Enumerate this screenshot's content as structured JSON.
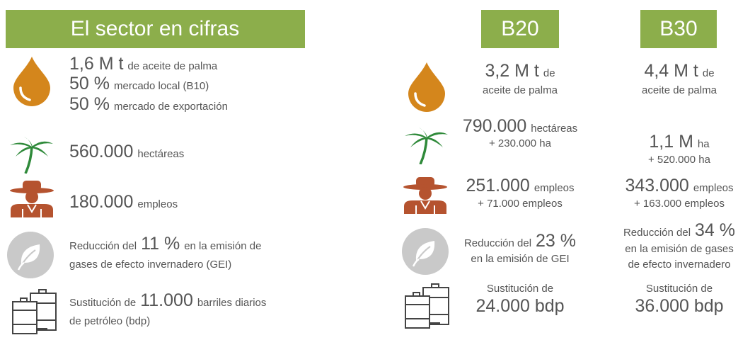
{
  "header": {
    "title": "El sector en cifras"
  },
  "current": {
    "rows": [
      [
        [
          {
            "big": "1,6 M t"
          },
          {
            "small": "de aceite de palma"
          }
        ],
        [
          {
            "big": "50 %"
          },
          {
            "small": "mercado local (B10)"
          }
        ],
        [
          {
            "big": "50 %"
          },
          {
            "small": "mercado de exportación"
          }
        ]
      ],
      [
        [
          {
            "big": "560.000"
          },
          {
            "small": "hectáreas"
          }
        ]
      ],
      [
        [
          {
            "big": "180.000"
          },
          {
            "small": "empleos"
          }
        ]
      ],
      [
        [
          {
            "small": "Reducción del"
          },
          {
            "big": "11 %"
          },
          {
            "small": "en la emisión de"
          }
        ],
        [
          {
            "small": "gases de efecto invernadero (GEI)"
          }
        ]
      ],
      [
        [
          {
            "small": "Sustitución de"
          },
          {
            "big": "11.000"
          },
          {
            "small": "barriles diarios"
          }
        ],
        [
          {
            "small": "de petróleo (bdp)"
          }
        ]
      ]
    ]
  },
  "scenarios": [
    {
      "name": "B20",
      "rows": [
        [
          [
            {
              "big": "3,2 M t"
            },
            {
              "small": "de"
            }
          ],
          [
            {
              "small": "aceite de palma"
            }
          ]
        ],
        [
          [
            {
              "big": "790.000"
            },
            {
              "small": "hectáreas"
            }
          ],
          [
            {
              "small": "+ 230.000 ha"
            }
          ]
        ],
        [
          [
            {
              "big": "251.000"
            },
            {
              "small": "empleos"
            }
          ],
          [
            {
              "small": "+ 71.000 empleos"
            }
          ]
        ],
        [
          [
            {
              "small": "Reducción del"
            },
            {
              "big": "23 %"
            }
          ],
          [
            {
              "small": "en la emisión de GEI"
            }
          ]
        ],
        [
          [
            {
              "small": "Sustitución de"
            }
          ],
          [
            {
              "big": "24.000 bdp"
            }
          ]
        ]
      ]
    },
    {
      "name": "B30",
      "rows": [
        [
          [
            {
              "big": "4,4 M t"
            },
            {
              "small": "de"
            }
          ],
          [
            {
              "small": "aceite de palma"
            }
          ]
        ],
        [
          [
            {
              "big": "1,1 M"
            },
            {
              "small": "ha"
            }
          ],
          [
            {
              "small": "+ 520.000 ha"
            }
          ]
        ],
        [
          [
            {
              "big": "343.000"
            },
            {
              "small": "empleos"
            }
          ],
          [
            {
              "small": "+ 163.000 empleos"
            }
          ]
        ],
        [
          [
            {
              "small": "Reducción del"
            },
            {
              "big": "34 %"
            }
          ],
          [
            {
              "small": "en la emisión de gases"
            }
          ],
          [
            {
              "small": "de efecto invernadero"
            }
          ]
        ],
        [
          [
            {
              "small": "Sustitución de"
            }
          ],
          [
            {
              "big": "36.000 bdp"
            }
          ]
        ]
      ]
    }
  ]
}
